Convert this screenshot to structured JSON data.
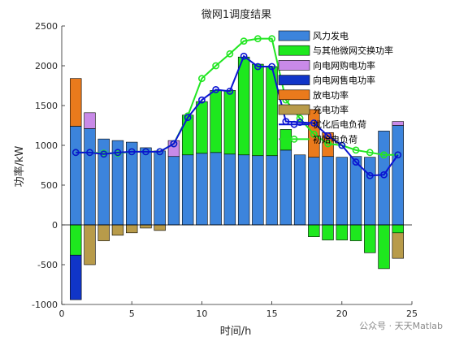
{
  "chart_data": {
    "type": "bar",
    "title": "微网1调度结果",
    "xlabel": "时间/h",
    "ylabel": "功率/kW",
    "xlim": [
      0,
      25
    ],
    "ylim": [
      -1000,
      2500
    ],
    "xticks": [
      0,
      5,
      10,
      15,
      20,
      25
    ],
    "yticks": [
      -1000,
      -500,
      0,
      500,
      1000,
      1500,
      2000,
      2500
    ],
    "x": [
      1,
      2,
      3,
      4,
      5,
      6,
      7,
      8,
      9,
      10,
      11,
      12,
      13,
      14,
      15,
      16,
      17,
      18,
      19,
      20,
      21,
      22,
      23,
      24
    ],
    "stacked": true,
    "series": [
      {
        "name": "风力发电",
        "kind": "bar",
        "color": "#3C84DC",
        "values": [
          1240,
          1210,
          1080,
          1060,
          1040,
          970,
          930,
          860,
          880,
          900,
          910,
          890,
          880,
          870,
          870,
          940,
          880,
          850,
          860,
          850,
          860,
          850,
          1180,
          1250
        ]
      },
      {
        "name": "与其他微网交换功率",
        "kind": "bar",
        "color": "#1EE81E",
        "values": [
          -380,
          0,
          0,
          0,
          0,
          0,
          0,
          0,
          500,
          650,
          780,
          800,
          1230,
          1150,
          1120,
          260,
          0,
          -150,
          -190,
          -190,
          -200,
          -350,
          -550,
          -100
        ]
      },
      {
        "name": "向电网购电功率",
        "kind": "bar",
        "color": "#C98AE8",
        "values": [
          0,
          200,
          0,
          0,
          0,
          0,
          0,
          200,
          0,
          0,
          0,
          0,
          0,
          0,
          0,
          0,
          0,
          0,
          0,
          0,
          0,
          0,
          0,
          50
        ]
      },
      {
        "name": "向电网售电功率",
        "kind": "bar",
        "color": "#1035C8",
        "values": [
          -560,
          0,
          0,
          0,
          0,
          0,
          0,
          0,
          0,
          0,
          0,
          0,
          0,
          0,
          0,
          0,
          0,
          0,
          0,
          0,
          0,
          0,
          0,
          0
        ]
      },
      {
        "name": "放电功率",
        "kind": "bar",
        "color": "#EA7A1C",
        "values": [
          600,
          0,
          0,
          0,
          0,
          0,
          0,
          0,
          0,
          0,
          0,
          0,
          0,
          0,
          0,
          0,
          0,
          600,
          300,
          0,
          0,
          0,
          0,
          0
        ]
      },
      {
        "name": "充电功率",
        "kind": "bar",
        "color": "#B89B4A",
        "values": [
          0,
          -500,
          -200,
          -130,
          -100,
          -40,
          -70,
          0,
          0,
          0,
          0,
          0,
          0,
          0,
          0,
          0,
          0,
          0,
          0,
          0,
          0,
          0,
          0,
          -320
        ]
      },
      {
        "name": "优化后电负荷",
        "kind": "line",
        "color": "#0A14D2",
        "values": [
          910,
          910,
          890,
          910,
          920,
          920,
          920,
          1020,
          1350,
          1570,
          1700,
          1680,
          2120,
          1990,
          1990,
          1300,
          1290,
          1280,
          1120,
          1000,
          790,
          620,
          630,
          880
        ]
      },
      {
        "name": "初始电负荷",
        "kind": "line",
        "color": "#22E622",
        "values": [
          910,
          910,
          900,
          900,
          920,
          920,
          920,
          1020,
          1370,
          1840,
          2000,
          2150,
          2310,
          2340,
          2340,
          1570,
          1340,
          1140,
          1020,
          1000,
          940,
          910,
          880,
          880
        ]
      }
    ],
    "legend_position": "top-right",
    "watermark": "公众号 · 天天Matlab"
  }
}
